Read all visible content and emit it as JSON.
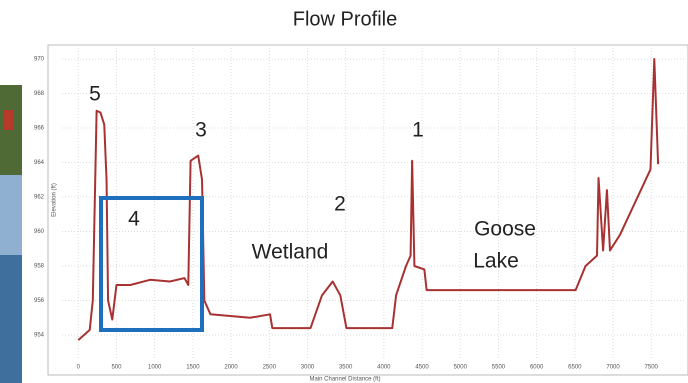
{
  "chart_data": {
    "type": "line",
    "title": "Flow Profile",
    "x_label": "Main Channel Distance (ft)",
    "y_label": "Elevation (ft)",
    "xlim": [
      -200,
      7900
    ],
    "ylim": [
      953,
      971
    ],
    "xticks": [
      0,
      500,
      1000,
      1500,
      2000,
      2500,
      3000,
      3500,
      4000,
      4500,
      5000,
      5500,
      6000,
      6500,
      7000,
      7500
    ],
    "yticks": [
      954,
      956,
      958,
      960,
      962,
      964,
      966,
      968,
      970
    ],
    "grid": true,
    "annotations": [
      "5",
      "3",
      "4",
      "2",
      "1",
      "Wetland",
      "Goose",
      "Lake"
    ],
    "series": [
      {
        "color": "#a83232",
        "x": [
          0,
          150,
          190,
          240,
          290,
          340,
          370,
          390,
          445,
          500,
          680,
          940,
          1200,
          1390,
          1440,
          1470,
          1570,
          1620,
          1650,
          1730,
          2250,
          2510,
          2540,
          3040,
          3190,
          3330,
          3430,
          3510,
          4110,
          4160,
          4290,
          4350,
          4370,
          4400,
          4530,
          4560,
          6510,
          6640,
          6790,
          6810,
          6870,
          6920,
          6960,
          7090,
          7490,
          7540,
          7590
        ],
        "values": [
          953.7,
          954.3,
          956,
          967,
          966.9,
          966.2,
          963,
          956,
          954.9,
          956.9,
          956.9,
          957.2,
          957.1,
          957.3,
          956.9,
          964.1,
          964.4,
          963,
          956,
          955.2,
          955,
          955.2,
          954.4,
          954.4,
          956.3,
          957.1,
          956.3,
          954.4,
          954.4,
          956.3,
          958,
          958.6,
          964.1,
          958,
          957.8,
          956.6,
          956.6,
          958,
          958.6,
          963.1,
          958.9,
          962.4,
          958.9,
          959.8,
          963.6,
          970,
          963.9
        ]
      }
    ]
  }
}
